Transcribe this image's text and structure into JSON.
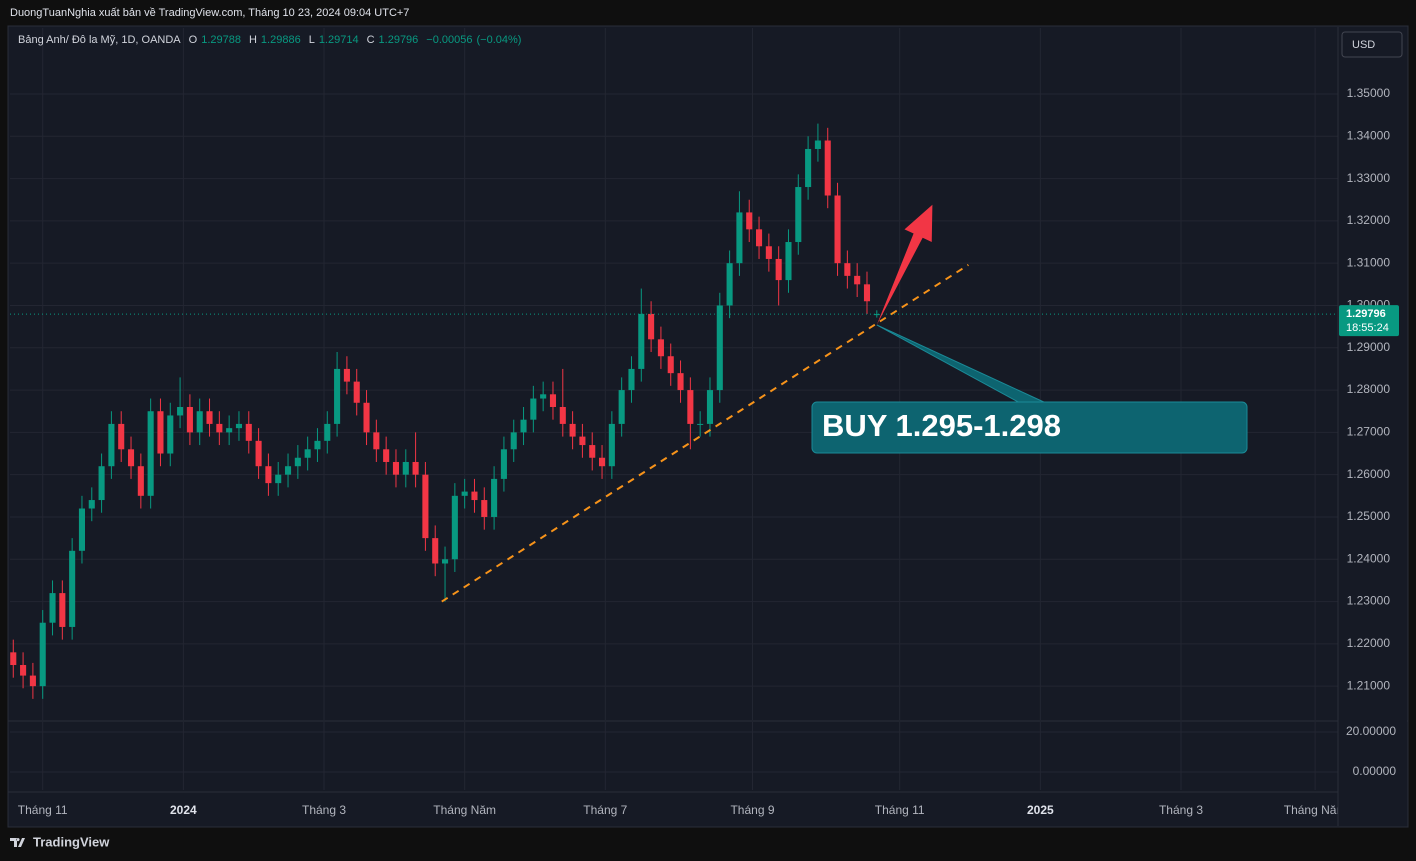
{
  "header": {
    "publisher_line": "DuongTuanNghia xuất bản về TradingView.com, Tháng 10 23, 2024 09:04 UTC+7"
  },
  "chart_data": {
    "type": "candlestick",
    "title": "Bảng Anh/ Đô la Mỹ, 1D, OANDA",
    "ohlc_labels": [
      "O",
      "H",
      "L",
      "C"
    ],
    "change": {
      "value": -0.00056,
      "label": "−0.00056"
    },
    "change_percent": {
      "value": -0.04,
      "label": "(−0.04%)"
    },
    "currency": "USD",
    "up_color": "#089981",
    "down_color": "#f23645",
    "candles": {
      "x": [
        -9,
        -6,
        -3,
        0,
        3,
        6,
        9,
        12,
        15,
        18,
        21,
        24,
        27,
        30,
        33,
        36,
        39,
        42,
        45,
        48,
        51,
        54,
        57,
        60,
        63,
        66,
        69,
        72,
        75,
        78,
        81,
        84,
        87,
        90,
        93,
        96,
        99,
        102,
        105,
        108,
        111,
        114,
        117,
        120,
        123,
        126,
        129,
        132,
        135,
        138,
        141,
        144,
        147,
        150,
        153,
        156,
        159,
        162,
        165,
        168,
        171,
        174,
        177,
        180,
        183,
        186,
        189,
        192,
        195,
        198,
        201,
        204,
        207,
        210,
        213,
        216,
        219,
        222,
        225,
        228,
        231,
        234,
        237,
        240,
        243,
        246,
        249,
        252,
        255
      ],
      "open": [
        1.218,
        1.215,
        1.2125,
        1.21,
        1.225,
        1.232,
        1.224,
        1.242,
        1.252,
        1.254,
        1.262,
        1.272,
        1.266,
        1.262,
        1.255,
        1.275,
        1.265,
        1.274,
        1.276,
        1.27,
        1.275,
        1.272,
        1.27,
        1.271,
        1.272,
        1.268,
        1.262,
        1.258,
        1.26,
        1.262,
        1.264,
        1.266,
        1.268,
        1.272,
        1.285,
        1.282,
        1.277,
        1.27,
        1.266,
        1.263,
        1.26,
        1.263,
        1.26,
        1.245,
        1.239,
        1.24,
        1.255,
        1.256,
        1.254,
        1.25,
        1.259,
        1.266,
        1.27,
        1.273,
        1.278,
        1.279,
        1.276,
        1.272,
        1.269,
        1.267,
        1.264,
        1.262,
        1.272,
        1.28,
        1.285,
        1.298,
        1.292,
        1.288,
        1.284,
        1.28,
        1.272,
        1.272,
        1.28,
        1.3,
        1.31,
        1.322,
        1.318,
        1.314,
        1.311,
        1.306,
        1.315,
        1.328,
        1.337,
        1.339,
        1.326,
        1.31,
        1.307,
        1.305,
        1.29788
      ],
      "high": [
        1.221,
        1.218,
        1.2155,
        1.228,
        1.235,
        1.235,
        1.245,
        1.255,
        1.257,
        1.265,
        1.275,
        1.275,
        1.269,
        1.265,
        1.278,
        1.278,
        1.277,
        1.283,
        1.279,
        1.278,
        1.278,
        1.275,
        1.274,
        1.275,
        1.275,
        1.271,
        1.265,
        1.263,
        1.265,
        1.267,
        1.269,
        1.271,
        1.275,
        1.289,
        1.288,
        1.285,
        1.28,
        1.273,
        1.269,
        1.266,
        1.266,
        1.27,
        1.263,
        1.248,
        1.243,
        1.258,
        1.259,
        1.259,
        1.257,
        1.262,
        1.269,
        1.273,
        1.276,
        1.281,
        1.282,
        1.282,
        1.285,
        1.275,
        1.272,
        1.27,
        1.267,
        1.275,
        1.283,
        1.288,
        1.304,
        1.301,
        1.295,
        1.291,
        1.287,
        1.283,
        1.275,
        1.283,
        1.303,
        1.313,
        1.327,
        1.325,
        1.321,
        1.317,
        1.314,
        1.318,
        1.331,
        1.34,
        1.343,
        1.342,
        1.329,
        1.313,
        1.31,
        1.308,
        1.29886
      ],
      "low": [
        1.212,
        1.2095,
        1.207,
        1.207,
        1.222,
        1.221,
        1.221,
        1.239,
        1.249,
        1.251,
        1.259,
        1.263,
        1.259,
        1.252,
        1.252,
        1.262,
        1.262,
        1.271,
        1.267,
        1.267,
        1.269,
        1.267,
        1.267,
        1.268,
        1.265,
        1.259,
        1.255,
        1.255,
        1.257,
        1.259,
        1.261,
        1.263,
        1.265,
        1.269,
        1.279,
        1.274,
        1.267,
        1.263,
        1.26,
        1.257,
        1.257,
        1.257,
        1.242,
        1.236,
        1.23,
        1.237,
        1.252,
        1.251,
        1.247,
        1.247,
        1.256,
        1.263,
        1.267,
        1.27,
        1.275,
        1.273,
        1.269,
        1.266,
        1.264,
        1.261,
        1.259,
        1.259,
        1.269,
        1.277,
        1.282,
        1.289,
        1.285,
        1.281,
        1.277,
        1.266,
        1.269,
        1.269,
        1.277,
        1.297,
        1.307,
        1.315,
        1.311,
        1.308,
        1.3,
        1.303,
        1.312,
        1.325,
        1.334,
        1.323,
        1.307,
        1.304,
        1.302,
        1.298,
        1.29714
      ],
      "close": [
        1.215,
        1.2125,
        1.21,
        1.225,
        1.232,
        1.224,
        1.242,
        1.252,
        1.254,
        1.262,
        1.272,
        1.266,
        1.262,
        1.255,
        1.275,
        1.265,
        1.274,
        1.276,
        1.27,
        1.275,
        1.272,
        1.27,
        1.271,
        1.272,
        1.268,
        1.262,
        1.258,
        1.26,
        1.262,
        1.264,
        1.266,
        1.268,
        1.272,
        1.285,
        1.282,
        1.277,
        1.27,
        1.266,
        1.263,
        1.26,
        1.263,
        1.26,
        1.245,
        1.239,
        1.24,
        1.255,
        1.256,
        1.254,
        1.25,
        1.259,
        1.266,
        1.27,
        1.273,
        1.278,
        1.279,
        1.276,
        1.272,
        1.269,
        1.267,
        1.264,
        1.262,
        1.272,
        1.28,
        1.285,
        1.298,
        1.292,
        1.288,
        1.284,
        1.28,
        1.272,
        1.272,
        1.28,
        1.3,
        1.31,
        1.322,
        1.318,
        1.314,
        1.311,
        1.306,
        1.315,
        1.328,
        1.337,
        1.339,
        1.326,
        1.31,
        1.307,
        1.305,
        1.301,
        1.29796
      ]
    },
    "xlim": [
      -10,
      396
    ],
    "xticks": [
      {
        "value": 0,
        "label": "Tháng 11"
      },
      {
        "value": 43,
        "label": "2024"
      },
      {
        "value": 86,
        "label": "Tháng 3"
      },
      {
        "value": 129,
        "label": "Tháng Năm"
      },
      {
        "value": 172,
        "label": "Tháng 7"
      },
      {
        "value": 217,
        "label": "Tháng 9"
      },
      {
        "value": 262,
        "label": "Tháng 11"
      },
      {
        "value": 305,
        "label": "2025"
      },
      {
        "value": 348,
        "label": "Tháng 3"
      },
      {
        "value": 389,
        "label": "Tháng Năm"
      }
    ],
    "ylim": [
      1.202,
      1.3656
    ],
    "yticks": [
      {
        "value": 1.21,
        "label": "1.21000"
      },
      {
        "value": 1.22,
        "label": "1.22000"
      },
      {
        "value": 1.23,
        "label": "1.23000"
      },
      {
        "value": 1.24,
        "label": "1.24000"
      },
      {
        "value": 1.25,
        "label": "1.25000"
      },
      {
        "value": 1.26,
        "label": "1.26000"
      },
      {
        "value": 1.27,
        "label": "1.27000"
      },
      {
        "value": 1.28,
        "label": "1.28000"
      },
      {
        "value": 1.29,
        "label": "1.29000"
      },
      {
        "value": 1.3,
        "label": "1.30000"
      },
      {
        "value": 1.31,
        "label": "1.31000"
      },
      {
        "value": 1.32,
        "label": "1.32000"
      },
      {
        "value": 1.33,
        "label": "1.33000"
      },
      {
        "value": 1.34,
        "label": "1.34000"
      },
      {
        "value": 1.35,
        "label": "1.35000"
      }
    ],
    "grid": true,
    "countdown": "18:55:24",
    "lower_pane": {
      "ylim": [
        -9,
        25
      ],
      "yticks": [
        {
          "value": 20,
          "label": "20.00000"
        },
        {
          "value": 0,
          "label": "0.00000"
        }
      ]
    },
    "trendline": {
      "x": [
        122,
        283
      ],
      "y": [
        1.23,
        1.3096
      ],
      "color": "#f7931a"
    },
    "arrow": {
      "x": [
        255,
        272
      ],
      "y": [
        1.2954,
        1.3238
      ],
      "color": "#f23645"
    },
    "callout": {
      "text": "BUY 1.295-1.298"
    }
  },
  "footer": {
    "brand": "TradingView"
  }
}
